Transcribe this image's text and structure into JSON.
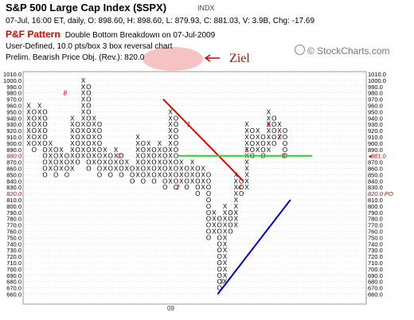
{
  "header": {
    "title": "S&P 500 Large Cap Index ($SPX)",
    "ticker_type": "INDX",
    "quote_line": "07-Jul, 16:00 ET, daily, O: 898.60, H: 898.60, L: 879.93, C: 881.03, V: 3.9B, Chg: -17.69",
    "pattern_label": "P&F Pattern",
    "pattern_text": "Double Bottom Breakdown on 07-Jul-2009",
    "settings_line": "User-Defined, 10.0 pts/box 3 box reversal chart",
    "target_line": "Prelim. Bearish Price Obj. (Rev.): 820.0",
    "brand": "© StockCharts.com"
  },
  "annotation": {
    "text": "Ziel",
    "color": "#cc0000",
    "ellipse_color": "#f4b8b8"
  },
  "colors": {
    "symbol": "#000000",
    "month": "#cc0000",
    "trend_red": "#ee0000",
    "trend_blue": "#0000dd",
    "level_green": "#33cc33",
    "price_red": "#cc0000",
    "grid": "#cccccc"
  },
  "chart_data": {
    "type": "point-and-figure",
    "box_size": 10,
    "reversal": 3,
    "y_range": [
      660,
      1010
    ],
    "y_ticks": [
      660,
      670,
      680,
      690,
      700,
      710,
      720,
      730,
      740,
      750,
      760,
      770,
      780,
      790,
      800,
      810,
      820,
      830,
      840,
      850,
      860,
      870,
      880,
      890,
      900,
      910,
      920,
      930,
      940,
      950,
      960,
      970,
      980,
      990,
      1000,
      1010
    ],
    "x_label": "09",
    "current_price": 881,
    "current_price_label": "881.0",
    "target_price": 820,
    "target_price_label": "820.0 PO",
    "highlighted_ticks": [
      {
        "value": 880,
        "label": "880.0"
      },
      {
        "value": 820,
        "label": "820.0"
      }
    ],
    "columns": [
      {
        "type": "X",
        "low": 900,
        "high": 960
      },
      {
        "type": "O",
        "low": 890,
        "high": 950
      },
      {
        "type": "X",
        "low": 900,
        "high": 960
      },
      {
        "type": "O",
        "low": 850,
        "high": 950
      },
      {
        "type": "X",
        "low": 860,
        "high": 900
      },
      {
        "type": "O",
        "low": 850,
        "high": 890
      },
      {
        "type": "X",
        "low": 860,
        "high": 890
      },
      {
        "type": "O",
        "low": 850,
        "high": 880
      },
      {
        "type": "X",
        "low": 860,
        "high": 940
      },
      {
        "type": "O",
        "low": 870,
        "high": 930
      },
      {
        "type": "X",
        "low": 880,
        "high": 1000
      },
      {
        "type": "O",
        "low": 860,
        "high": 990
      },
      {
        "type": "X",
        "low": 870,
        "high": 940
      },
      {
        "type": "O",
        "low": 850,
        "high": 930
      },
      {
        "type": "X",
        "low": 860,
        "high": 890
      },
      {
        "type": "O",
        "low": 850,
        "high": 880
      },
      {
        "type": "X",
        "low": 860,
        "high": 890
      },
      {
        "type": "O",
        "low": 850,
        "high": 880
      },
      {
        "type": "X",
        "low": 860,
        "high": 870
      },
      {
        "type": "O",
        "low": 840,
        "high": 860
      },
      {
        "type": "X",
        "low": 850,
        "high": 910
      },
      {
        "type": "O",
        "low": 840,
        "high": 900
      },
      {
        "type": "X",
        "low": 850,
        "high": 900
      },
      {
        "type": "O",
        "low": 840,
        "high": 890
      },
      {
        "type": "X",
        "low": 850,
        "high": 900
      },
      {
        "type": "O",
        "low": 830,
        "high": 890
      },
      {
        "type": "X",
        "low": 840,
        "high": 950
      },
      {
        "type": "O",
        "low": 830,
        "high": 940
      },
      {
        "type": "X",
        "low": 840,
        "high": 870
      },
      {
        "type": "O",
        "low": 830,
        "high": 860
      },
      {
        "type": "X",
        "low": 840,
        "high": 870
      },
      {
        "type": "O",
        "low": 820,
        "high": 860
      },
      {
        "type": "X",
        "low": 830,
        "high": 860
      },
      {
        "type": "O",
        "low": 750,
        "high": 850
      },
      {
        "type": "X",
        "low": 760,
        "high": 790
      },
      {
        "type": "O",
        "low": 670,
        "high": 780
      },
      {
        "type": "X",
        "low": 680,
        "high": 800
      },
      {
        "type": "O",
        "low": 760,
        "high": 790
      },
      {
        "type": "X",
        "low": 770,
        "high": 850
      },
      {
        "type": "O",
        "low": 820,
        "high": 840
      },
      {
        "type": "X",
        "low": 830,
        "high": 930
      },
      {
        "type": "O",
        "low": 880,
        "high": 920
      },
      {
        "type": "X",
        "low": 890,
        "high": 920
      },
      {
        "type": "O",
        "low": 880,
        "high": 910
      },
      {
        "type": "X",
        "low": 890,
        "high": 950
      },
      {
        "type": "O",
        "low": 900,
        "high": 940
      },
      {
        "type": "X",
        "low": 910,
        "high": 930
      },
      {
        "type": "O",
        "low": 880,
        "high": 920
      }
    ],
    "month_markers": [
      {
        "col": 10,
        "value": 980,
        "label": "8"
      },
      {
        "col": 25,
        "value": 880,
        "label": "C"
      },
      {
        "col": 44,
        "value": 930,
        "label": "1"
      },
      {
        "col": 41,
        "value": 830,
        "label": "2"
      },
      {
        "col": 53,
        "value": 680,
        "label": "3"
      },
      {
        "col": 58,
        "value": 830,
        "label": "4"
      },
      {
        "col": 60,
        "value": 890,
        "label": "5"
      },
      {
        "col": 66,
        "value": 930,
        "label": "6"
      },
      {
        "col": 69,
        "value": 910,
        "label": "7"
      },
      {
        "col": 70,
        "value": 880,
        "label": "0"
      }
    ],
    "trendlines": [
      {
        "name": "red",
        "from": {
          "col": 37,
          "value": 970
        },
        "to": {
          "col": 59,
          "value": 840
        }
      },
      {
        "name": "blue",
        "from": {
          "col": 52,
          "value": 660
        },
        "to": {
          "col": 72,
          "value": 810
        }
      }
    ],
    "level_line": {
      "value": 880,
      "from_col": 41,
      "to_col": 78
    }
  }
}
